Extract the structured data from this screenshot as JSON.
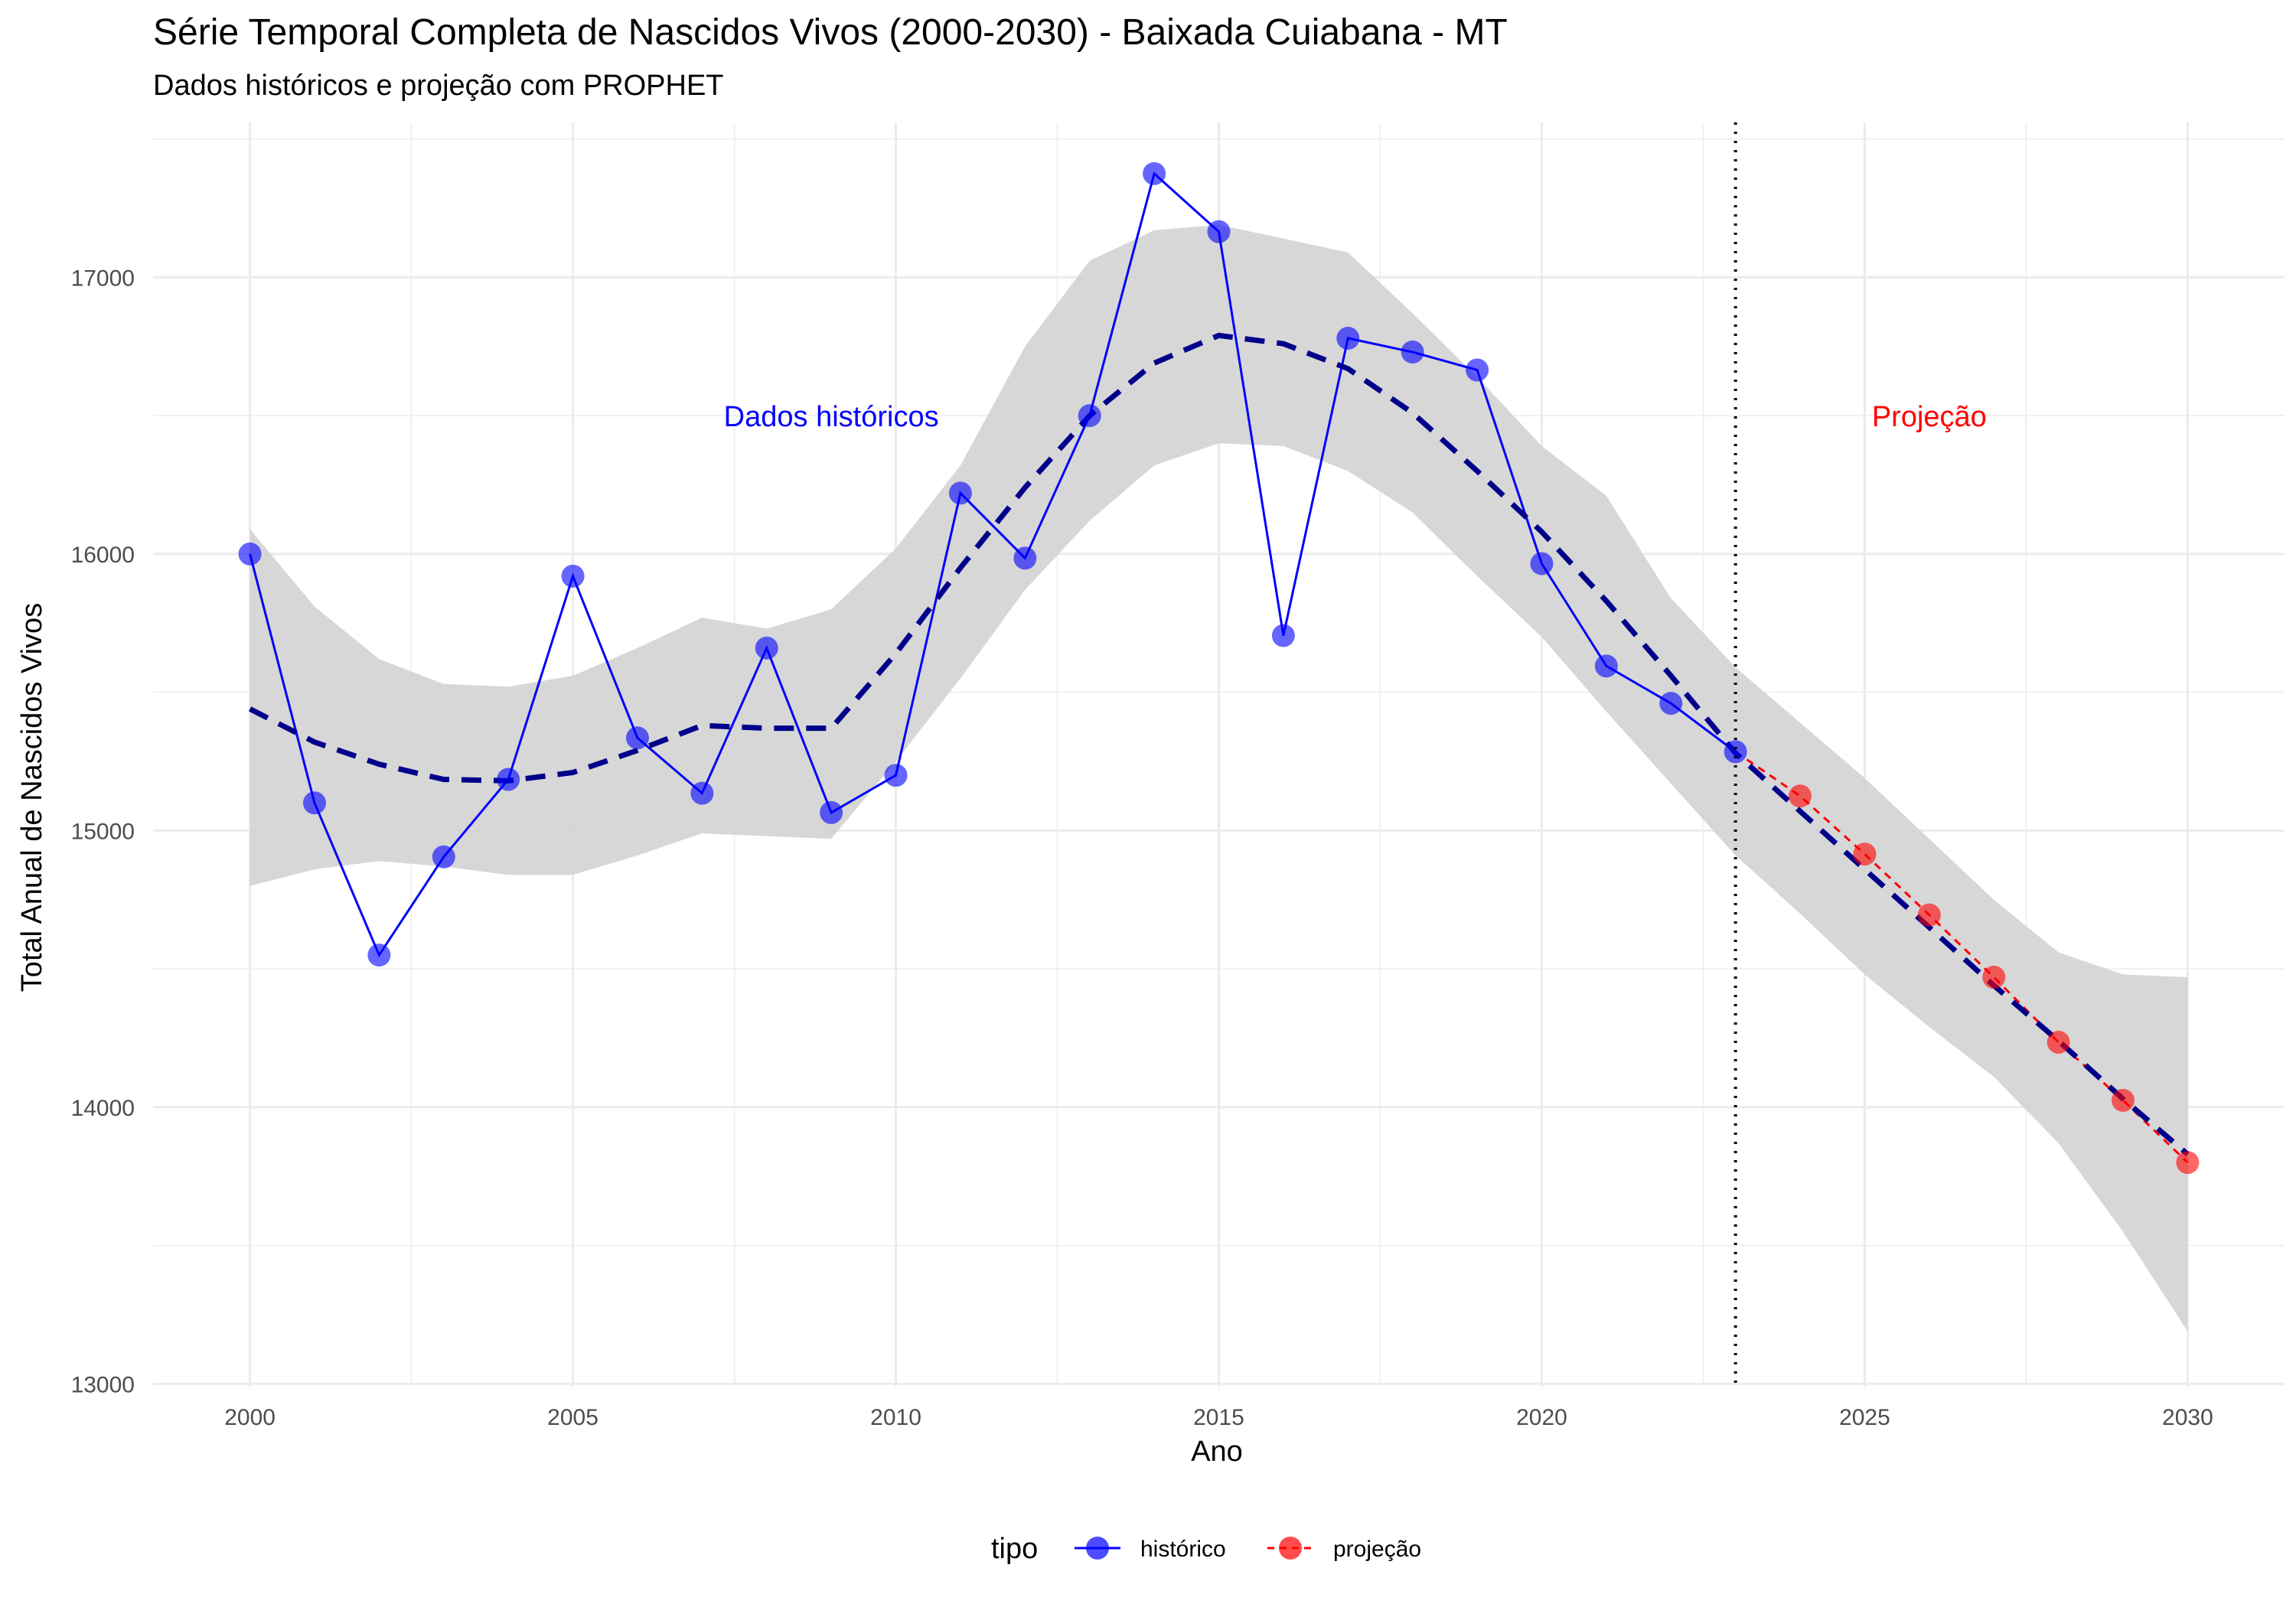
{
  "chart_data": {
    "type": "line",
    "title": "Série Temporal Completa de Nascidos Vivos (2000-2030) -  Baixada Cuiabana - MT",
    "subtitle": "Dados históricos e projeção com PROPHET",
    "xlabel": "Ano",
    "ylabel": "Total Anual de Nascidos Vivos",
    "xlim": [
      1998.5,
      2031.5
    ],
    "ylim": [
      12990,
      17560
    ],
    "x_ticks": [
      2000,
      2005,
      2010,
      2015,
      2020,
      2025,
      2030
    ],
    "y_ticks": [
      13000,
      14000,
      15000,
      16000,
      17000
    ],
    "grid": true,
    "vline": {
      "x": 2023,
      "style": "dotted"
    },
    "annotations": [
      {
        "text": "Dados históricos",
        "x": 2009,
        "y": 16500,
        "color": "#0000ff"
      },
      {
        "text": "Projeção",
        "x": 2026,
        "y": 16500,
        "color": "#ff0000"
      }
    ],
    "series": [
      {
        "name": "histórico",
        "color": "#0000ff",
        "x": [
          2000,
          2001,
          2002,
          2003,
          2004,
          2005,
          2006,
          2007,
          2008,
          2009,
          2010,
          2011,
          2012,
          2013,
          2014,
          2015,
          2016,
          2017,
          2018,
          2019,
          2020,
          2021,
          2022,
          2023
        ],
        "values": [
          16000,
          15100,
          14550,
          14905,
          15185,
          15920,
          15335,
          15135,
          15660,
          15065,
          15200,
          16220,
          15985,
          16500,
          17375,
          17165,
          15705,
          16780,
          16730,
          16665,
          15965,
          15595,
          15460,
          15285
        ]
      },
      {
        "name": "projeção",
        "color": "#ff0000",
        "x": [
          2024,
          2025,
          2026,
          2027,
          2028,
          2029,
          2030
        ],
        "values": [
          15125,
          14915,
          14695,
          14470,
          14235,
          14025,
          13800
        ]
      }
    ],
    "trend": {
      "color": "#00008b",
      "style": "dashed",
      "x": [
        2000,
        2001,
        2002,
        2003,
        2004,
        2005,
        2006,
        2007,
        2008,
        2009,
        2010,
        2011,
        2012,
        2013,
        2014,
        2015,
        2016,
        2017,
        2018,
        2019,
        2020,
        2021,
        2022,
        2023,
        2024,
        2025,
        2026,
        2027,
        2028,
        2029,
        2030
      ],
      "y": [
        15440,
        15320,
        15240,
        15185,
        15180,
        15210,
        15290,
        15380,
        15370,
        15370,
        15640,
        15950,
        16240,
        16500,
        16690,
        16790,
        16760,
        16670,
        16510,
        16300,
        16080,
        15830,
        15560,
        15280,
        15070,
        14860,
        14650,
        14440,
        14240,
        14030,
        13830
      ]
    },
    "band": {
      "color": "#d3d3d3",
      "x": [
        2000,
        2001,
        2002,
        2003,
        2004,
        2005,
        2006,
        2007,
        2008,
        2009,
        2010,
        2011,
        2012,
        2013,
        2014,
        2015,
        2016,
        2017,
        2018,
        2019,
        2020,
        2021,
        2022,
        2023,
        2024,
        2025,
        2026,
        2027,
        2028,
        2029,
        2030
      ],
      "lower": [
        14800,
        14860,
        14890,
        14870,
        14840,
        14840,
        14910,
        14990,
        14980,
        14970,
        15250,
        15550,
        15870,
        16120,
        16320,
        16400,
        16390,
        16300,
        16150,
        15920,
        15700,
        15430,
        15170,
        14910,
        14700,
        14480,
        14290,
        14110,
        13870,
        13550,
        13190
      ],
      "upper": [
        16090,
        15810,
        15620,
        15530,
        15520,
        15560,
        15660,
        15770,
        15730,
        15800,
        16020,
        16320,
        16750,
        17060,
        17170,
        17190,
        17140,
        17090,
        16870,
        16640,
        16390,
        16210,
        15840,
        15590,
        15390,
        15190,
        14970,
        14750,
        14560,
        14480,
        14470
      ]
    },
    "legend": {
      "title": "tipo",
      "position": "bottom",
      "items": [
        "histórico",
        "projeção"
      ]
    }
  }
}
